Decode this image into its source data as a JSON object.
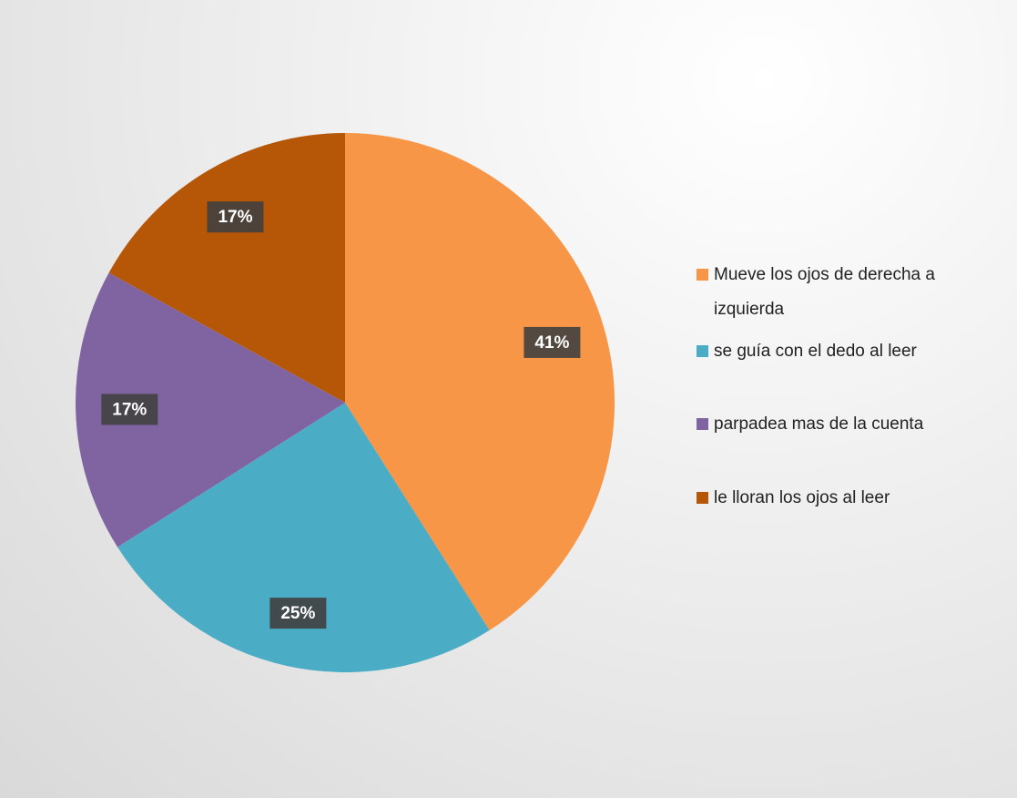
{
  "chart_data": {
    "type": "pie",
    "categories": [
      "Mueve los ojos de derecha a izquierda",
      "se guía con el dedo al leer",
      "parpadea mas de la cuenta",
      "le lloran los ojos al leer"
    ],
    "values": [
      41,
      25,
      17,
      17
    ],
    "value_labels": [
      "41%",
      "25%",
      "17%",
      "17%"
    ],
    "colors": [
      "#f79646",
      "#4bacc6",
      "#8064a2",
      "#b65708"
    ],
    "legend": "right"
  }
}
